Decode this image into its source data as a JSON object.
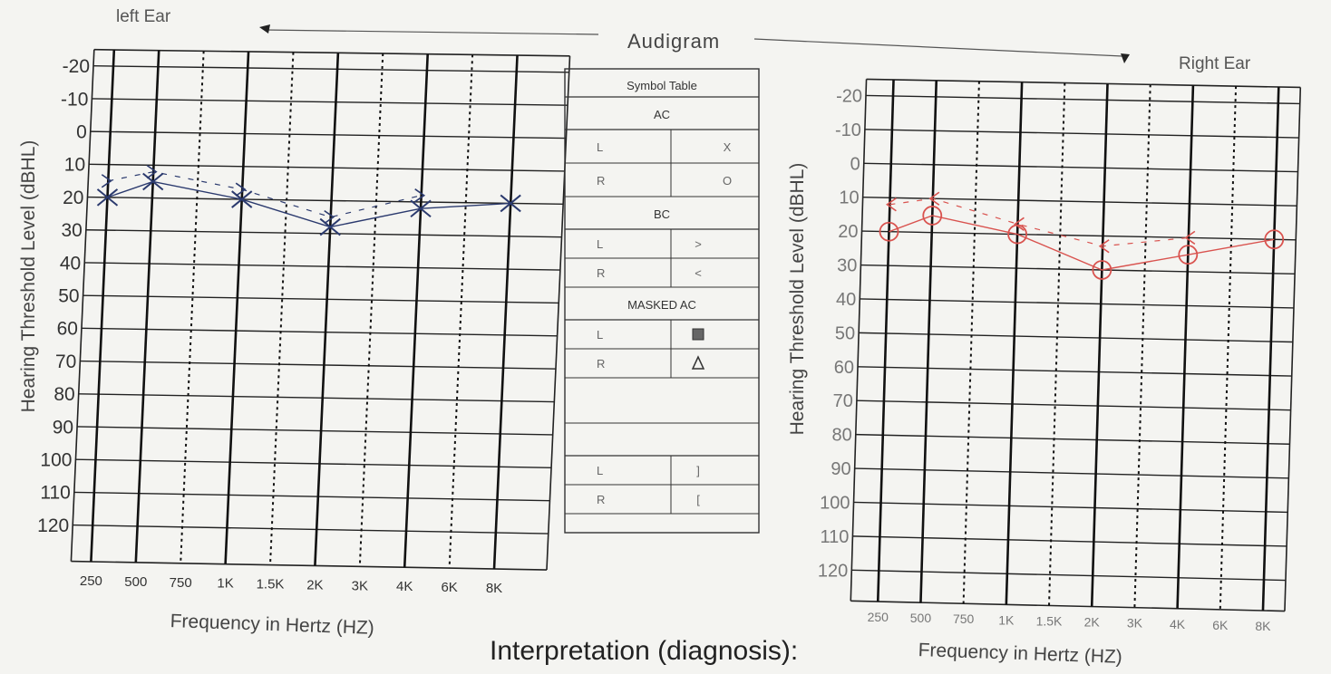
{
  "header": {
    "left_ear": "left Ear",
    "title": "Audigram",
    "right_ear": "Right Ear",
    "interpretation": "Interpretation (diagnosis):"
  },
  "symbol_table": {
    "title": "Symbol Table",
    "sections": [
      {
        "heading": "AC",
        "rows": [
          {
            "side": "L",
            "symbol": "X"
          },
          {
            "side": "R",
            "symbol": "O"
          }
        ]
      },
      {
        "heading": "BC",
        "rows": [
          {
            "side": "L",
            "symbol": ">"
          },
          {
            "side": "R",
            "symbol": "<"
          }
        ]
      },
      {
        "heading": "MASKED AC",
        "rows": [
          {
            "side": "L",
            "symbol": "square"
          },
          {
            "side": "R",
            "symbol": "triangle"
          }
        ]
      },
      {
        "heading": "",
        "rows": [
          {
            "side": "L",
            "symbol": "]"
          },
          {
            "side": "R",
            "symbol": "["
          }
        ]
      }
    ]
  },
  "colors": {
    "left_ear": "#2b3a6e",
    "right_ear": "#d9534f"
  },
  "chart_data": [
    {
      "type": "line",
      "title": "left Ear",
      "xlabel": "Frequency in Hertz (HZ)",
      "ylabel": "Hearing Threshold Level (dBHL)",
      "categories": [
        "250",
        "500",
        "750",
        "1K",
        "1.5K",
        "2K",
        "3K",
        "4K",
        "6K",
        "8K"
      ],
      "ylim": [
        -20,
        120
      ],
      "y_ticks": [
        "-20",
        "-10",
        "0",
        "10",
        "20",
        "30",
        "40",
        "50",
        "60",
        "70",
        "80",
        "90",
        "100",
        "110",
        "120"
      ],
      "y_inverted": true,
      "series": [
        {
          "symbol": "X",
          "points": [
            {
              "x": "250",
              "y": 20
            },
            {
              "x": "500",
              "y": 15
            },
            {
              "x": "1K",
              "y": 20
            },
            {
              "x": "2K",
              "y": 28
            },
            {
              "x": "4K",
              "y": 22
            },
            {
              "x": "8K",
              "y": 20
            }
          ]
        },
        {
          "symbol": ">",
          "points": [
            {
              "x": "250",
              "y": 15
            },
            {
              "x": "500",
              "y": 12
            },
            {
              "x": "1K",
              "y": 17
            },
            {
              "x": "2K",
              "y": 25
            },
            {
              "x": "4K",
              "y": 18
            }
          ]
        }
      ]
    },
    {
      "type": "line",
      "title": "Right Ear",
      "xlabel": "Frequency in Hertz (HZ)",
      "ylabel": "Hearing Threshold Level (dBHL)",
      "categories": [
        "250",
        "500",
        "750",
        "1K",
        "1.5K",
        "2K",
        "3K",
        "4K",
        "6K",
        "8K"
      ],
      "ylim": [
        -20,
        120
      ],
      "y_ticks": [
        "-20",
        "-10",
        "0",
        "10",
        "20",
        "30",
        "40",
        "50",
        "60",
        "70",
        "80",
        "90",
        "100",
        "110",
        "120"
      ],
      "y_inverted": true,
      "series": [
        {
          "symbol": "O",
          "points": [
            {
              "x": "250",
              "y": 20
            },
            {
              "x": "500",
              "y": 15
            },
            {
              "x": "1K",
              "y": 20
            },
            {
              "x": "2K",
              "y": 30
            },
            {
              "x": "4K",
              "y": 25
            },
            {
              "x": "8K",
              "y": 20
            }
          ]
        },
        {
          "symbol": "<",
          "points": [
            {
              "x": "250",
              "y": 12
            },
            {
              "x": "500",
              "y": 10
            },
            {
              "x": "1K",
              "y": 17
            },
            {
              "x": "2K",
              "y": 23
            },
            {
              "x": "4K",
              "y": 20
            }
          ]
        }
      ]
    }
  ]
}
